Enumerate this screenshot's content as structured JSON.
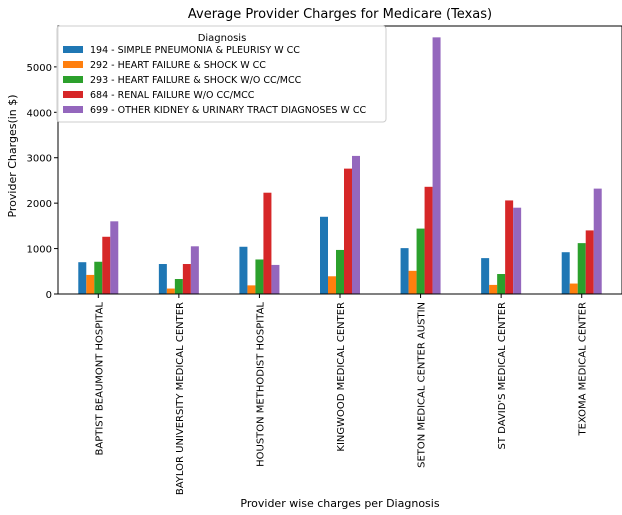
{
  "chart_data": {
    "type": "bar",
    "title": "Average Provider Charges for Medicare (Texas)",
    "xlabel": "Provider wise charges per Diagnosis",
    "ylabel": "Provider Charges(in $)",
    "ylim": [
      0,
      5900
    ],
    "yticks": [
      0,
      1000,
      2000,
      3000,
      4000,
      5000
    ],
    "grid": false,
    "legend": {
      "title": "Diagnosis",
      "placement": "top-left"
    },
    "categories": [
      "BAPTIST BEAUMONT HOSPITAL",
      "BAYLOR UNIVERSITY MEDICAL CENTER",
      "HOUSTON METHODIST HOSPITAL",
      "KINGWOOD MEDICAL CENTER",
      "SETON MEDICAL CENTER AUSTIN",
      "ST DAVID'S MEDICAL CENTER",
      "TEXOMA MEDICAL CENTER"
    ],
    "series": [
      {
        "name": "194 - SIMPLE PNEUMONIA & PLEURISY W CC",
        "color": "#1f77b4",
        "values": [
          700,
          660,
          1040,
          1700,
          1010,
          790,
          920
        ]
      },
      {
        "name": "292 - HEART FAILURE & SHOCK W CC",
        "color": "#ff7f0e",
        "values": [
          420,
          120,
          190,
          390,
          510,
          200,
          230
        ]
      },
      {
        "name": "293 - HEART FAILURE & SHOCK W/O CC/MCC",
        "color": "#2ca02c",
        "values": [
          710,
          330,
          760,
          970,
          1440,
          440,
          1120
        ]
      },
      {
        "name": "684 - RENAL FAILURE W/O CC/MCC",
        "color": "#d62728",
        "values": [
          1260,
          660,
          2230,
          2760,
          2360,
          2060,
          1400
        ]
      },
      {
        "name": "699 - OTHER KIDNEY & URINARY TRACT DIAGNOSES W CC",
        "color": "#9467bd",
        "values": [
          1600,
          1050,
          640,
          3040,
          5650,
          1900,
          2320
        ]
      }
    ]
  }
}
